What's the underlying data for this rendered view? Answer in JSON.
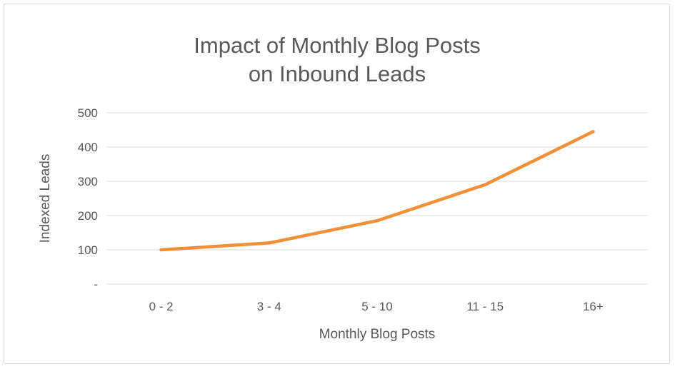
{
  "chart_data": {
    "type": "line",
    "title": "Impact of Monthly Blog Posts",
    "subtitle": "on Inbound Leads",
    "xlabel": "Monthly Blog Posts",
    "ylabel": "Indexed Leads",
    "categories": [
      "0 - 2",
      "3 - 4",
      "5 - 10",
      "11 - 15",
      "16+"
    ],
    "series": [
      {
        "values": [
          100,
          120,
          185,
          290,
          445
        ],
        "color": "#f0913a"
      }
    ],
    "ylim": [
      0,
      500
    ],
    "yticks": [
      0,
      100,
      200,
      300,
      400,
      500
    ],
    "ytick_labels": [
      "-",
      "100",
      "200",
      "300",
      "400",
      "500"
    ],
    "grid": true,
    "gridColor": "#d9d9d9",
    "legend": "none"
  }
}
